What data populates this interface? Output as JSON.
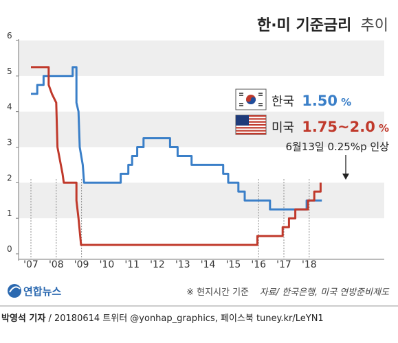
{
  "title": {
    "main": "한·미 기준금리",
    "sub": "추이"
  },
  "legend": {
    "korea": {
      "label": "한국",
      "value": "1.50",
      "unit": "%"
    },
    "us": {
      "label": "미국",
      "value": "1.75~2.0",
      "unit": "%"
    }
  },
  "annotation": "6월13일 0.25%p 인상",
  "note": "※ 현지시간 기준",
  "source": "자료/ 한국은행, 미국 연방준비제도",
  "logo": "연합뉴스",
  "byline": {
    "author": "박영석 기자",
    "rest": " / 20180614  트위터 @yonhap_graphics, 페이스북 tuney.kr/LeYN1"
  },
  "colors": {
    "korea": "#3a7fc8",
    "us": "#c0392b",
    "band": "#eeeeee",
    "note": "#555555"
  },
  "chart_data": {
    "type": "line",
    "ylim": [
      0,
      6
    ],
    "xlim": [
      2007,
      2018.9
    ],
    "yticks": [
      "0",
      "1",
      "2",
      "3",
      "4",
      "5",
      "6"
    ],
    "xticks": [
      {
        "label": "'07",
        "x": 2007.0
      },
      {
        "label": "'08",
        "x": 2008.0
      },
      {
        "label": "'09",
        "x": 2009.0
      },
      {
        "label": "'10",
        "x": 2010.0
      },
      {
        "label": "'11",
        "x": 2011.0
      },
      {
        "label": "'12",
        "x": 2012.0
      },
      {
        "label": "'13",
        "x": 2013.0
      },
      {
        "label": "'14",
        "x": 2014.0
      },
      {
        "label": "'15",
        "x": 2015.0
      },
      {
        "label": "'16",
        "x": 2016.0
      },
      {
        "label": "'17",
        "x": 2017.0
      },
      {
        "label": "'18",
        "x": 2018.0
      }
    ],
    "series": [
      {
        "name": "한국",
        "color": "#3a7fc8",
        "points": [
          [
            2007.0,
            4.5
          ],
          [
            2007.25,
            4.5
          ],
          [
            2007.25,
            4.75
          ],
          [
            2007.5,
            4.75
          ],
          [
            2007.5,
            5.0
          ],
          [
            2008.65,
            5.0
          ],
          [
            2008.65,
            5.25
          ],
          [
            2008.8,
            5.25
          ],
          [
            2008.8,
            4.25
          ],
          [
            2008.88,
            4.0
          ],
          [
            2008.93,
            3.0
          ],
          [
            2009.05,
            2.5
          ],
          [
            2009.1,
            2.0
          ],
          [
            2010.55,
            2.0
          ],
          [
            2010.55,
            2.25
          ],
          [
            2010.85,
            2.25
          ],
          [
            2010.85,
            2.5
          ],
          [
            2011.0,
            2.5
          ],
          [
            2011.0,
            2.75
          ],
          [
            2011.2,
            2.75
          ],
          [
            2011.2,
            3.0
          ],
          [
            2011.45,
            3.0
          ],
          [
            2011.45,
            3.25
          ],
          [
            2012.5,
            3.25
          ],
          [
            2012.5,
            3.0
          ],
          [
            2012.8,
            3.0
          ],
          [
            2012.8,
            2.75
          ],
          [
            2013.35,
            2.75
          ],
          [
            2013.35,
            2.5
          ],
          [
            2014.6,
            2.5
          ],
          [
            2014.6,
            2.25
          ],
          [
            2014.8,
            2.25
          ],
          [
            2014.8,
            2.0
          ],
          [
            2015.2,
            2.0
          ],
          [
            2015.2,
            1.75
          ],
          [
            2015.45,
            1.75
          ],
          [
            2015.45,
            1.5
          ],
          [
            2016.45,
            1.5
          ],
          [
            2016.45,
            1.25
          ],
          [
            2017.9,
            1.25
          ],
          [
            2017.9,
            1.5
          ],
          [
            2018.5,
            1.5
          ]
        ]
      },
      {
        "name": "미국",
        "color": "#c0392b",
        "points": [
          [
            2007.0,
            5.25
          ],
          [
            2007.7,
            5.25
          ],
          [
            2007.7,
            4.75
          ],
          [
            2007.83,
            4.5
          ],
          [
            2008.0,
            4.25
          ],
          [
            2008.05,
            3.0
          ],
          [
            2008.25,
            2.25
          ],
          [
            2008.3,
            2.0
          ],
          [
            2008.8,
            2.0
          ],
          [
            2008.8,
            1.5
          ],
          [
            2008.88,
            1.0
          ],
          [
            2008.98,
            0.25
          ],
          [
            2015.95,
            0.25
          ],
          [
            2015.95,
            0.5
          ],
          [
            2016.95,
            0.5
          ],
          [
            2016.95,
            0.75
          ],
          [
            2017.2,
            0.75
          ],
          [
            2017.2,
            1.0
          ],
          [
            2017.45,
            1.0
          ],
          [
            2017.45,
            1.25
          ],
          [
            2017.95,
            1.25
          ],
          [
            2017.95,
            1.5
          ],
          [
            2018.2,
            1.5
          ],
          [
            2018.2,
            1.75
          ],
          [
            2018.45,
            1.75
          ],
          [
            2018.45,
            2.0
          ]
        ]
      }
    ],
    "dashed_markers_x": [
      2007.0,
      2008.0,
      2009.0,
      2016.0,
      2017.0,
      2018.0
    ]
  }
}
